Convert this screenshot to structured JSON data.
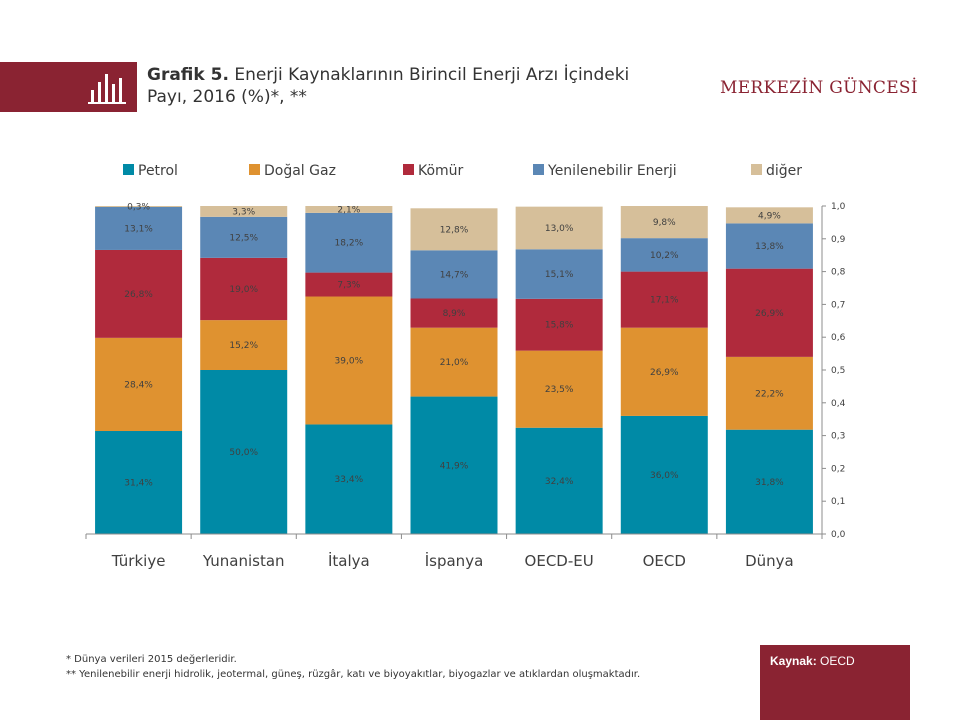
{
  "header": {
    "title_bold": "Grafik 5.",
    "title_rest": " Enerji Kaynaklarının Birincil Enerji Arzı İçindeki Payı, 2016 (%)*, **",
    "brand": "MERKEZİN GÜNCESİ",
    "icon": "bar-chart-icon"
  },
  "chart_data": {
    "type": "bar",
    "stacked": true,
    "categories": [
      "Türkiye",
      "Yunanistan",
      "İtalya",
      "İspanya",
      "OECD-EU",
      "OECD",
      "Dünya"
    ],
    "series": [
      {
        "name": "Petrol",
        "color": "#008aa6",
        "values": [
          0.314,
          0.5,
          0.334,
          0.419,
          0.324,
          0.36,
          0.318
        ],
        "labels": [
          "31,4%",
          "50,0%",
          "33,4%",
          "41,9%",
          "32,4%",
          "36,0%",
          "31,8%"
        ]
      },
      {
        "name": "Doğal Gaz",
        "color": "#df9230",
        "values": [
          0.284,
          0.152,
          0.39,
          0.21,
          0.235,
          0.269,
          0.222
        ],
        "labels": [
          "28,4%",
          "15,2%",
          "39,0%",
          "21,0%",
          "23,5%",
          "26,9%",
          "22,2%"
        ]
      },
      {
        "name": "Kömür",
        "color": "#b02a3c",
        "values": [
          0.268,
          0.19,
          0.073,
          0.089,
          0.158,
          0.171,
          0.269
        ],
        "labels": [
          "26,8%",
          "19,0%",
          "7,3%",
          "8,9%",
          "15,8%",
          "17,1%",
          "26,9%"
        ]
      },
      {
        "name": "Yenilenebilir Enerji",
        "color": "#5b87b5",
        "values": [
          0.131,
          0.125,
          0.182,
          0.147,
          0.151,
          0.102,
          0.138
        ],
        "labels": [
          "13,1%",
          "12,5%",
          "18,2%",
          "14,7%",
          "15,1%",
          "10,2%",
          "13,8%"
        ]
      },
      {
        "name": "diğer",
        "color": "#d6bf9a",
        "values": [
          0.003,
          0.033,
          0.021,
          0.128,
          0.13,
          0.098,
          0.049
        ],
        "labels": [
          "0,3%",
          "3,3%",
          "2,1%",
          "12,8%",
          "13,0%",
          "9,8%",
          "4,9%"
        ]
      }
    ],
    "ylim": [
      0,
      1.0
    ],
    "yticks": [
      "0,0",
      "0,1",
      "0,2",
      "0,3",
      "0,4",
      "0,5",
      "0,6",
      "0,7",
      "0,8",
      "0,9",
      "1,0"
    ],
    "yaxis_side": "right",
    "legend": "top",
    "grid": false
  },
  "footnotes": [
    "* Dünya verileri 2015 değerleridir.",
    "** Yenilenebilir enerji hidrolik, jeotermal, güneş, rüzgâr, katı ve biyoyakıtlar, biyogazlar ve atıklardan oluşmaktadır."
  ],
  "source": {
    "label": "Kaynak:",
    "value": " OECD"
  }
}
